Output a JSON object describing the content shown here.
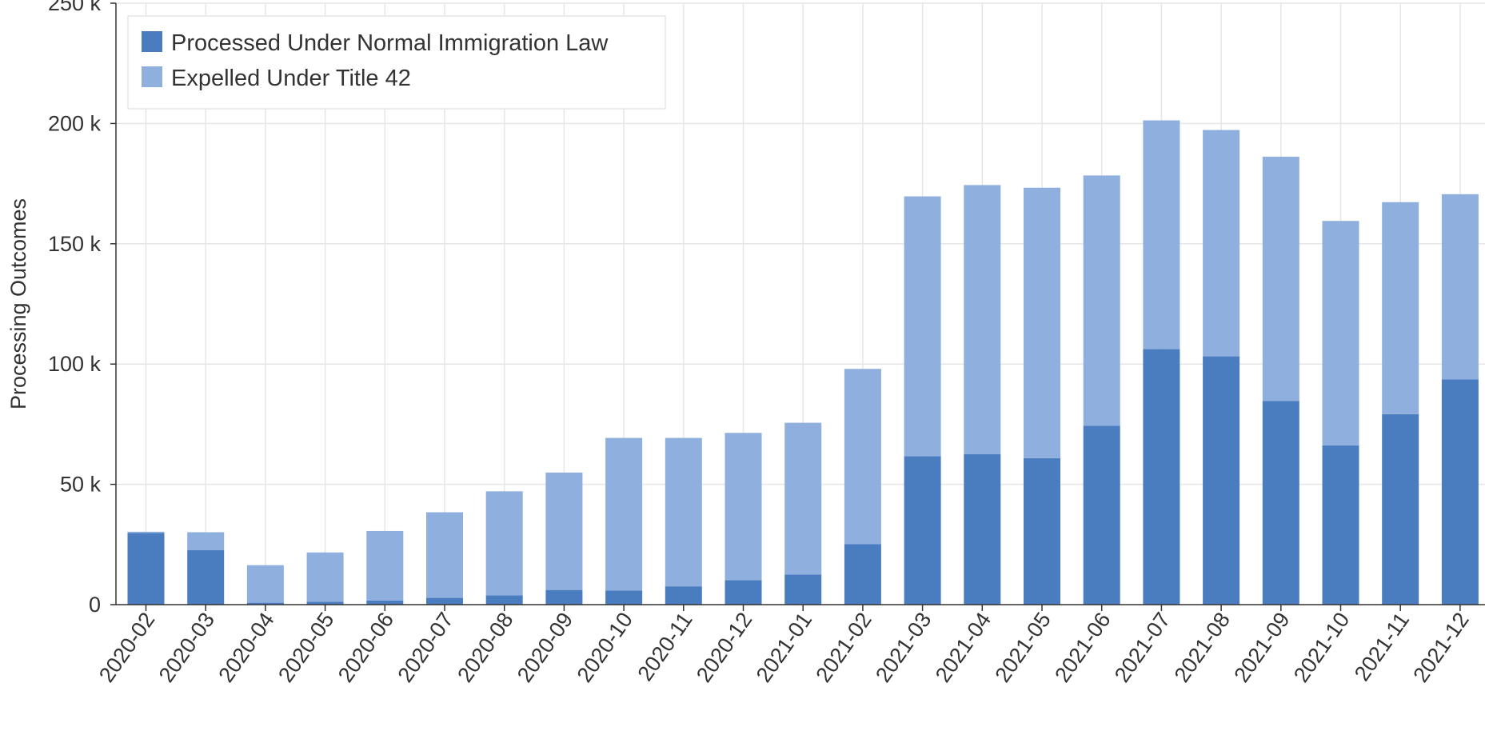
{
  "chart_data": {
    "type": "bar",
    "stacked": true,
    "title": "",
    "xlabel": "",
    "ylabel": "Processing Outcomes",
    "ylim": [
      0,
      250000
    ],
    "yticks": [
      0,
      50000,
      100000,
      150000,
      200000,
      250000
    ],
    "ytick_labels": [
      "0",
      "50 k",
      "100 k",
      "150 k",
      "200 k",
      "250 k"
    ],
    "grid": true,
    "legend_position": "top-left",
    "categories": [
      "2020-02",
      "2020-03",
      "2020-04",
      "2020-05",
      "2020-06",
      "2020-07",
      "2020-08",
      "2020-09",
      "2020-10",
      "2020-11",
      "2020-12",
      "2021-01",
      "2021-02",
      "2021-03",
      "2021-04",
      "2021-05",
      "2021-06",
      "2021-07",
      "2021-08",
      "2021-09",
      "2021-10",
      "2021-11",
      "2021-12"
    ],
    "series": [
      {
        "name": "Processed Under Normal Immigration Law",
        "color": "#4a7dbf",
        "values": [
          29800,
          22700,
          800,
          1200,
          1700,
          2800,
          3900,
          6100,
          5900,
          7600,
          10200,
          12500,
          25100,
          61700,
          62500,
          60900,
          74300,
          106200,
          103200,
          84700,
          66200,
          79200,
          93600
        ]
      },
      {
        "name": "Expelled Under Title 42",
        "color": "#8fb0de",
        "values": [
          500,
          7400,
          15600,
          20500,
          28900,
          35600,
          43200,
          48800,
          63400,
          61700,
          61200,
          63100,
          72900,
          108000,
          111900,
          112400,
          104100,
          95100,
          94100,
          101500,
          93300,
          88100,
          77000
        ]
      }
    ]
  }
}
